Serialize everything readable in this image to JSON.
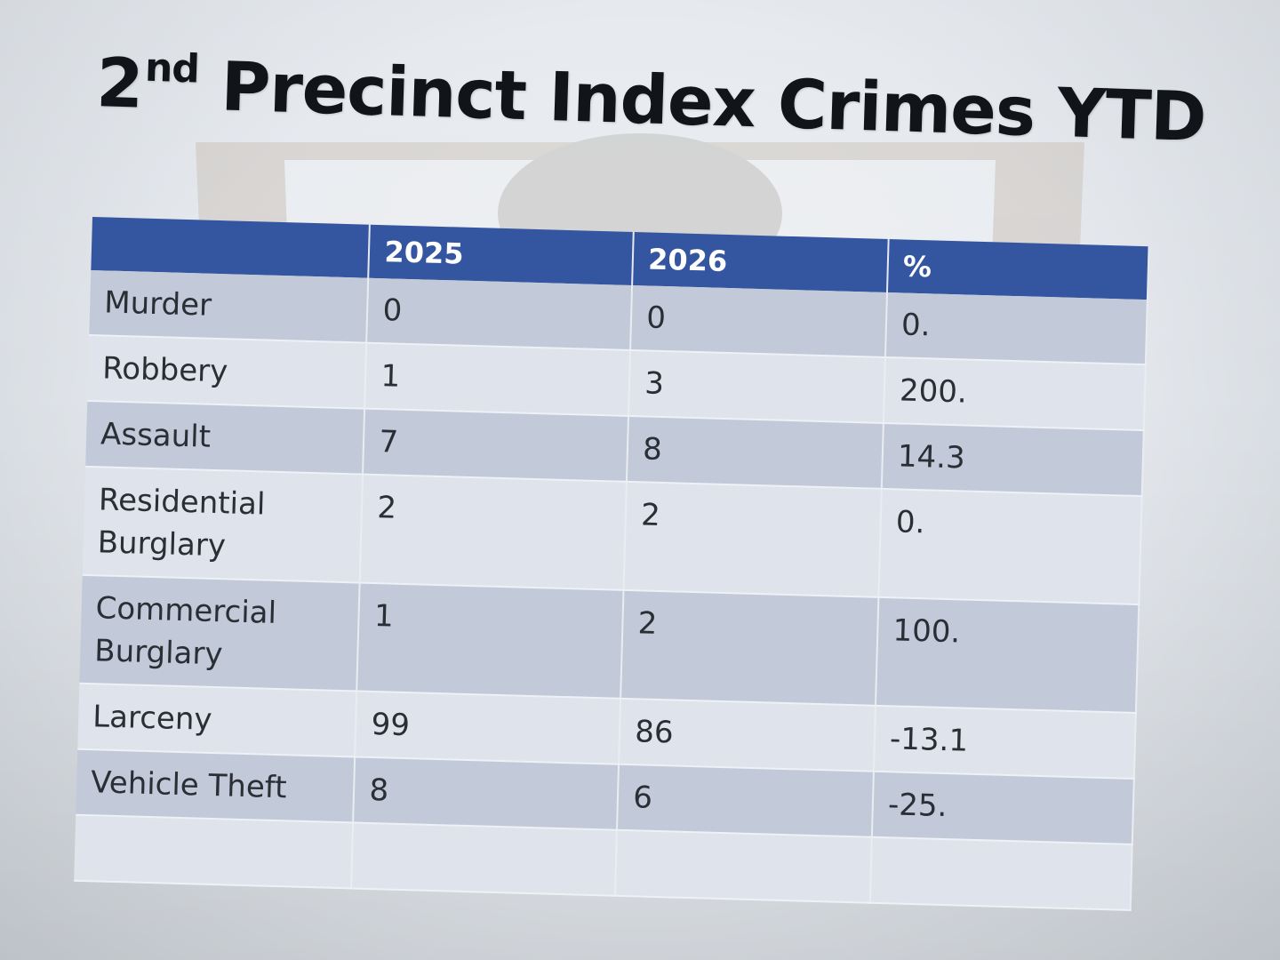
{
  "slide": {
    "title_main": "2",
    "title_sup": "nd",
    "title_rest": " Precinct Index Crimes YTD"
  },
  "table": {
    "headers": [
      "",
      "2025",
      "2026",
      "%"
    ],
    "rows": [
      {
        "label_line1": "Murder",
        "label_line2": "",
        "y2025": "0",
        "y2026": "0",
        "pct": "0."
      },
      {
        "label_line1": "Robbery",
        "label_line2": "",
        "y2025": "1",
        "y2026": "3",
        "pct": "200."
      },
      {
        "label_line1": "Assault",
        "label_line2": "",
        "y2025": "7",
        "y2026": "8",
        "pct": "14.3"
      },
      {
        "label_line1": "Residential",
        "label_line2": "Burglary",
        "y2025": "2",
        "y2026": "2",
        "pct": "0."
      },
      {
        "label_line1": "Commercial",
        "label_line2": "Burglary",
        "y2025": "1",
        "y2026": "2",
        "pct": "100."
      },
      {
        "label_line1": "Larceny",
        "label_line2": "",
        "y2025": "99",
        "y2026": "86",
        "pct": "-13.1"
      },
      {
        "label_line1": "Vehicle Theft",
        "label_line2": "",
        "y2025": "8",
        "y2026": "6",
        "pct": "-25."
      }
    ]
  },
  "colors": {
    "header_bg": "#3455a0",
    "row_dark": "#c2cad9",
    "row_light": "#dfe4ec"
  },
  "icons": {
    "watermark": "police-shield-emblem-icon"
  }
}
